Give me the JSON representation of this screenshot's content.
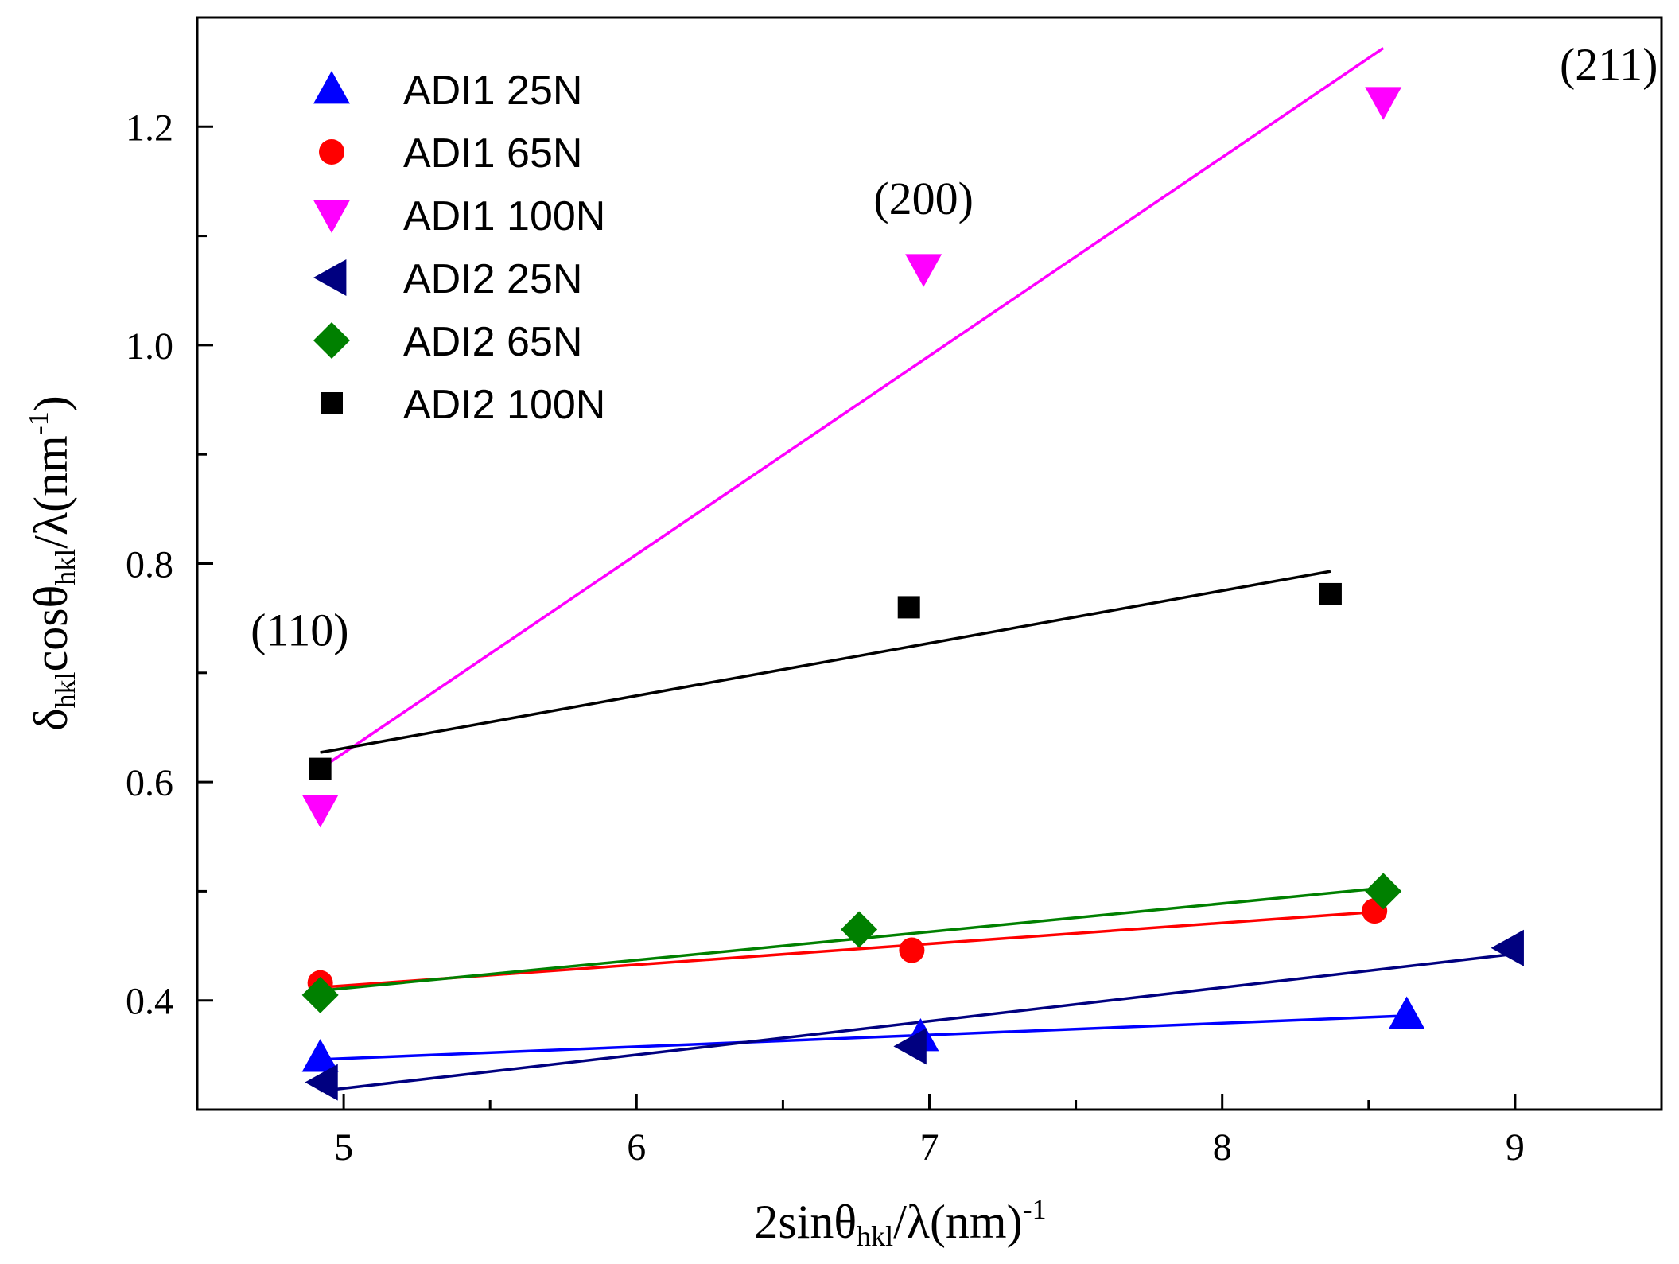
{
  "chart_data": {
    "type": "scatter",
    "title": "",
    "xlabel": {
      "main": "2sinθ",
      "sub": "hkl",
      "tail": "/λ(nm)",
      "sup": "-1"
    },
    "ylabel": {
      "p1": "δ",
      "s1": "hkl",
      "p2": "cosθ",
      "s2": "hkl",
      "p3": "/λ(nm",
      "sup": "-1",
      "p4": ")"
    },
    "xlim": [
      4.5,
      9.5
    ],
    "ylim": [
      0.3,
      1.3
    ],
    "xticks": [
      5,
      6,
      7,
      8,
      9
    ],
    "xtick_labels": [
      "5",
      "6",
      "7",
      "8",
      "9"
    ],
    "yticks": [
      0.4,
      0.6,
      0.8,
      1.0,
      1.2
    ],
    "ytick_labels": [
      "0.4",
      "0.6",
      "0.8",
      "1.0",
      "1.2"
    ],
    "legend_position": "top-left",
    "series": [
      {
        "name": "ADI1 25N",
        "marker": "triangle-up",
        "color": "#0000ff",
        "x": [
          4.92,
          6.97,
          8.63
        ],
        "y": [
          0.348,
          0.367,
          0.387
        ],
        "fit": {
          "x": [
            4.92,
            8.63
          ],
          "y": [
            0.346,
            0.386
          ]
        }
      },
      {
        "name": "ADI1 65N",
        "marker": "circle",
        "color": "#ff0000",
        "x": [
          4.92,
          6.94,
          8.52
        ],
        "y": [
          0.416,
          0.446,
          0.482
        ],
        "fit": {
          "x": [
            4.92,
            8.52
          ],
          "y": [
            0.412,
            0.481
          ]
        }
      },
      {
        "name": "ADI1 100N",
        "marker": "triangle-down",
        "color": "#ff00ff",
        "x": [
          4.92,
          6.98,
          8.55
        ],
        "y": [
          0.575,
          1.07,
          1.223
        ],
        "fit": {
          "x": [
            4.92,
            8.55
          ],
          "y": [
            0.612,
            1.272
          ]
        }
      },
      {
        "name": "ADI2 25N",
        "marker": "triangle-left",
        "color": "#000080",
        "x": [
          4.93,
          6.94,
          8.98
        ],
        "y": [
          0.325,
          0.358,
          0.448
        ],
        "fit": {
          "x": [
            4.92,
            8.98
          ],
          "y": [
            0.317,
            0.442
          ]
        }
      },
      {
        "name": "ADI2 65N",
        "marker": "diamond",
        "color": "#008000",
        "x": [
          4.92,
          6.76,
          8.55
        ],
        "y": [
          0.405,
          0.465,
          0.5
        ],
        "fit": {
          "x": [
            4.92,
            8.55
          ],
          "y": [
            0.409,
            0.503
          ]
        }
      },
      {
        "name": "ADI2 100N",
        "marker": "square",
        "color": "#000000",
        "x": [
          4.92,
          6.93,
          8.37
        ],
        "y": [
          0.612,
          0.76,
          0.772
        ],
        "fit": {
          "x": [
            4.92,
            8.37
          ],
          "y": [
            0.627,
            0.793
          ]
        }
      }
    ],
    "annotations": [
      {
        "text": "(110)",
        "x": 4.85,
        "y": 0.725
      },
      {
        "text": "(200)",
        "x": 6.98,
        "y": 1.12
      },
      {
        "text": "(211)",
        "x": 9.32,
        "y": 1.243
      }
    ]
  }
}
